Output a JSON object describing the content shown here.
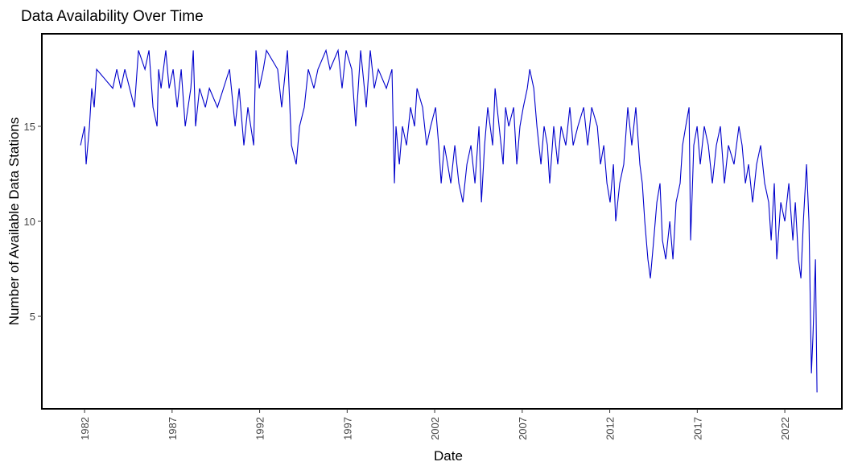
{
  "chart_data": {
    "type": "line",
    "title": "Data Availability Over Time",
    "xlabel": "Date",
    "ylabel": "Number of Available Data Stations",
    "x": [
      1981.77,
      1982.0,
      1982.09,
      1982.28,
      1982.41,
      1982.55,
      1982.69,
      1983.61,
      1983.84,
      1984.07,
      1984.3,
      1984.85,
      1985.08,
      1985.45,
      1985.68,
      1985.91,
      1986.14,
      1986.23,
      1986.37,
      1986.64,
      1986.83,
      1987.06,
      1987.29,
      1987.52,
      1987.75,
      1988.07,
      1988.21,
      1988.34,
      1988.57,
      1988.9,
      1989.13,
      1989.59,
      1990.28,
      1990.6,
      1990.83,
      1991.1,
      1991.33,
      1991.66,
      1991.79,
      1991.98,
      1992.21,
      1992.39,
      1993.03,
      1993.26,
      1993.59,
      1993.82,
      1994.09,
      1994.28,
      1994.55,
      1994.78,
      1995.1,
      1995.33,
      1995.79,
      1996.02,
      1996.48,
      1996.71,
      1996.94,
      1997.26,
      1997.49,
      1997.77,
      1998.09,
      1998.32,
      1998.55,
      1998.78,
      1999.24,
      1999.56,
      1999.7,
      1999.79,
      1999.98,
      2000.16,
      2000.39,
      2000.62,
      2000.85,
      2000.99,
      2001.31,
      2001.54,
      2001.77,
      2002.05,
      2002.23,
      2002.37,
      2002.55,
      2002.74,
      2002.92,
      2003.15,
      2003.38,
      2003.61,
      2003.84,
      2004.07,
      2004.3,
      2004.53,
      2004.67,
      2004.85,
      2005.03,
      2005.31,
      2005.45,
      2005.68,
      2005.91,
      2006.05,
      2006.23,
      2006.51,
      2006.69,
      2006.87,
      2007.06,
      2007.29,
      2007.43,
      2007.66,
      2007.84,
      2008.07,
      2008.25,
      2008.44,
      2008.57,
      2008.8,
      2009.03,
      2009.22,
      2009.49,
      2009.72,
      2009.91,
      2010.18,
      2010.51,
      2010.74,
      2010.97,
      2011.29,
      2011.47,
      2011.66,
      2011.84,
      2012.02,
      2012.21,
      2012.34,
      2012.57,
      2012.8,
      2013.03,
      2013.26,
      2013.49,
      2013.72,
      2013.86,
      2014.0,
      2014.18,
      2014.32,
      2014.51,
      2014.69,
      2014.87,
      2015.01,
      2015.2,
      2015.43,
      2015.61,
      2015.79,
      2016.02,
      2016.16,
      2016.34,
      2016.53,
      2016.62,
      2016.8,
      2016.99,
      2017.17,
      2017.4,
      2017.63,
      2017.86,
      2018.09,
      2018.32,
      2018.55,
      2018.78,
      2019.1,
      2019.38,
      2019.56,
      2019.75,
      2019.93,
      2020.16,
      2020.39,
      2020.62,
      2020.85,
      2021.08,
      2021.22,
      2021.4,
      2021.54,
      2021.77,
      2022.0,
      2022.23,
      2022.46,
      2022.6,
      2022.78,
      2022.92,
      2023.06,
      2023.24,
      2023.38,
      2023.52,
      2023.61,
      2023.75,
      2023.84
    ],
    "series": [
      {
        "color": "#0000cc",
        "values": [
          14,
          15,
          13,
          15,
          17,
          16,
          18,
          17,
          18,
          17,
          18,
          16,
          19,
          18,
          19,
          16,
          15,
          18,
          17,
          19,
          17,
          18,
          16,
          18,
          15,
          17,
          19,
          15,
          17,
          16,
          17,
          16,
          18,
          15,
          17,
          14,
          16,
          14,
          19,
          17,
          18,
          19,
          18,
          16,
          19,
          14,
          13,
          15,
          16,
          18,
          17,
          18,
          19,
          18,
          19,
          17,
          19,
          18,
          15,
          19,
          16,
          19,
          17,
          18,
          17,
          18,
          12,
          15,
          13,
          15,
          14,
          16,
          15,
          17,
          16,
          14,
          15,
          16,
          14,
          12,
          14,
          13,
          12,
          14,
          12,
          11,
          13,
          14,
          12,
          15,
          11,
          14,
          16,
          14,
          17,
          15,
          13,
          16,
          15,
          16,
          13,
          15,
          16,
          17,
          18,
          17,
          15,
          13,
          15,
          14,
          12,
          15,
          13,
          15,
          14,
          16,
          14,
          15,
          16,
          14,
          16,
          15,
          13,
          14,
          12,
          11,
          13,
          10,
          12,
          13,
          16,
          14,
          16,
          13,
          12,
          10,
          8,
          7,
          9,
          11,
          12,
          9,
          8,
          10,
          8,
          11,
          12,
          14,
          15,
          16,
          9,
          14,
          15,
          13,
          15,
          14,
          12,
          14,
          15,
          12,
          14,
          13,
          15,
          14,
          12,
          13,
          11,
          13,
          14,
          12,
          11,
          9,
          12,
          8,
          11,
          10,
          12,
          9,
          11,
          8,
          7,
          10,
          13,
          10,
          2,
          4,
          8,
          1
        ]
      }
    ],
    "xlim": [
      1979.56,
      2025.26
    ],
    "xticks": [
      1982,
      1987,
      1992,
      1997,
      2002,
      2007,
      2012,
      2017,
      2022
    ],
    "ylim": [
      0.13,
      19.87
    ],
    "yticks": [
      5,
      10,
      15
    ]
  }
}
